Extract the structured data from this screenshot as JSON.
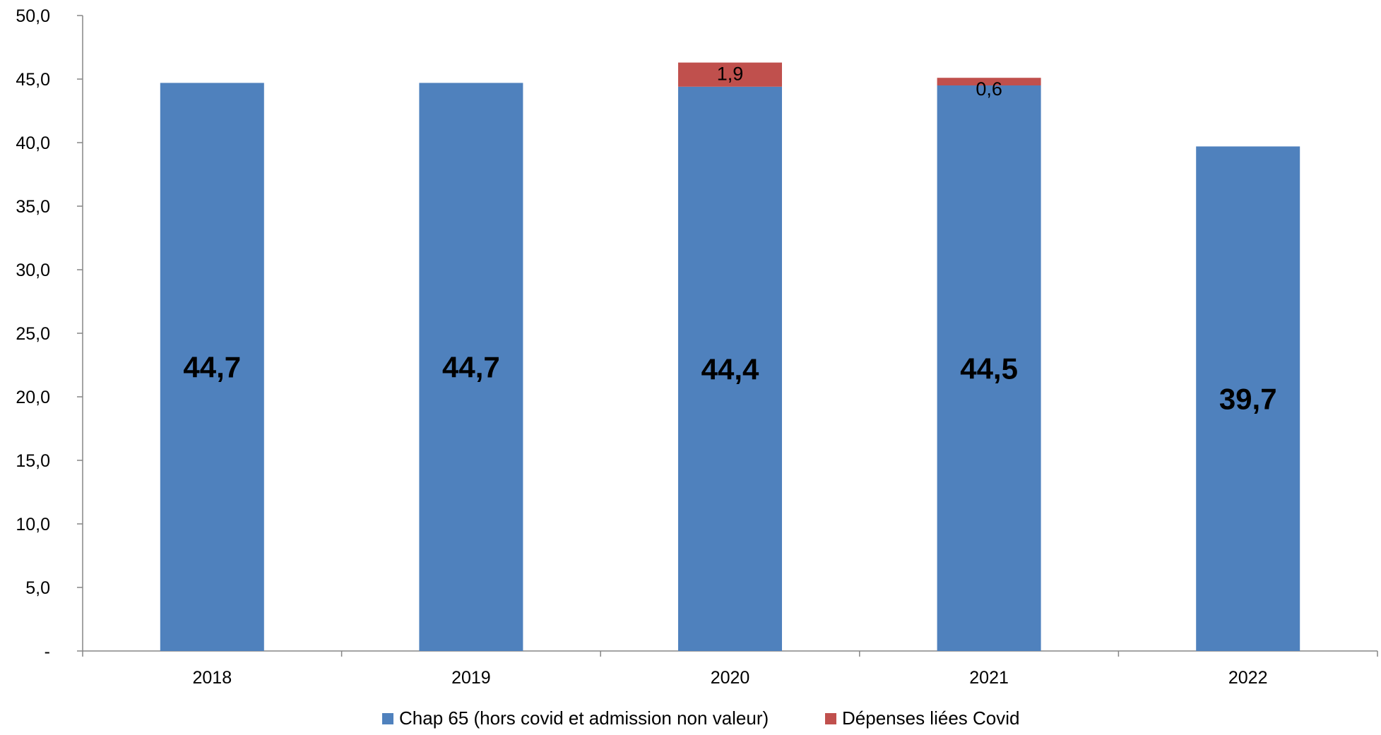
{
  "chart_data": {
    "type": "bar",
    "stacked": true,
    "categories": [
      "2018",
      "2019",
      "2020",
      "2021",
      "2022"
    ],
    "series": [
      {
        "name": "Chap 65 (hors covid et admission non valeur)",
        "values": [
          44.7,
          44.7,
          44.4,
          44.5,
          39.7
        ],
        "labels": [
          "44,7",
          "44,7",
          "44,4",
          "44,5",
          "39,7"
        ],
        "color": "#4f81bd"
      },
      {
        "name": "Dépenses liées Covid",
        "values": [
          0,
          0,
          1.9,
          0.6,
          0
        ],
        "labels": [
          "",
          "",
          "1,9",
          "0,6",
          ""
        ],
        "color": "#c0504d"
      }
    ],
    "ylim": [
      0,
      50
    ],
    "yticks": [
      0,
      5,
      10,
      15,
      20,
      25,
      30,
      35,
      40,
      45,
      50
    ],
    "ytick_labels": [
      "-",
      "5,0",
      "10,0",
      "15,0",
      "20,0",
      "25,0",
      "30,0",
      "35,0",
      "40,0",
      "45,0",
      "50,0"
    ],
    "grid": false,
    "legend_position": "bottom"
  }
}
